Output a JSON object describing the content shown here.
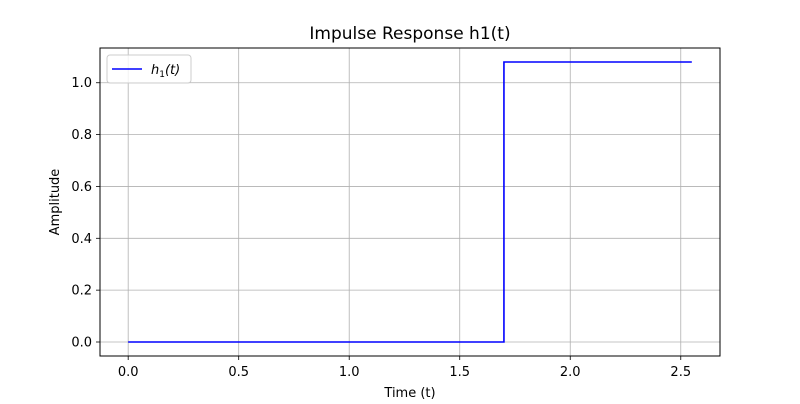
{
  "chart_data": {
    "type": "line",
    "title": "Impulse Response h1(t)",
    "xlabel": "Time (t)",
    "ylabel": "Amplitude",
    "xlim": [
      -0.1275,
      2.6775
    ],
    "ylim": [
      -0.054,
      1.134
    ],
    "xticks": [
      0.0,
      0.5,
      1.0,
      1.5,
      2.0,
      2.5
    ],
    "xtick_labels": [
      "0.0",
      "0.5",
      "1.0",
      "1.5",
      "2.0",
      "2.5"
    ],
    "yticks": [
      0.0,
      0.2,
      0.4,
      0.6,
      0.8,
      1.0
    ],
    "ytick_labels": [
      "0.0",
      "0.2",
      "0.4",
      "0.6",
      "0.8",
      "1.0"
    ],
    "grid": true,
    "legend_position": "top-left",
    "series": [
      {
        "name": "h1(t)",
        "legend_math": {
          "base": "h",
          "sub": "1",
          "arg": "(t)"
        },
        "color": "#0000ff",
        "x": [
          0.0,
          1.7,
          1.7,
          2.55
        ],
        "y": [
          0.0,
          0.0,
          1.08,
          1.08
        ]
      }
    ]
  }
}
